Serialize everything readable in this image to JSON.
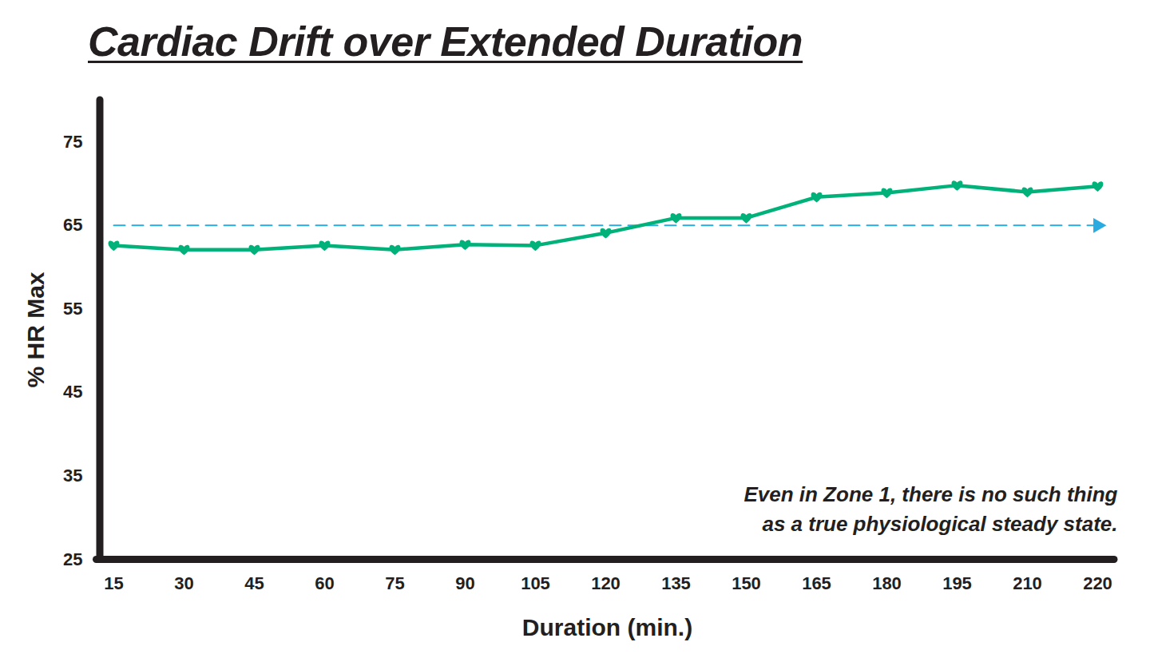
{
  "chart_data": {
    "type": "line",
    "title": "Cardiac Drift over Extended Duration",
    "x_label": "Duration (min.)",
    "y_label": "% HR Max",
    "annotation": "Even in Zone 1, there is no such thing\nas a true physiological steady state.",
    "categories": [
      "15",
      "30",
      "45",
      "60",
      "75",
      "90",
      "105",
      "120",
      "135",
      "150",
      "165",
      "180",
      "195",
      "210",
      "220"
    ],
    "values": [
      62.6,
      62.1,
      62.1,
      62.6,
      62.1,
      62.7,
      62.6,
      64.1,
      65.9,
      65.9,
      68.4,
      68.9,
      69.8,
      69.0,
      69.7
    ],
    "color": "#00b27a",
    "marker": "heart",
    "reference_line": {
      "value": 65,
      "color": "#29abe2",
      "line_style": "dashed"
    },
    "ylim": [
      25,
      80
    ],
    "yticks": [
      25,
      35,
      45,
      55,
      65,
      75
    ],
    "grid": false
  }
}
